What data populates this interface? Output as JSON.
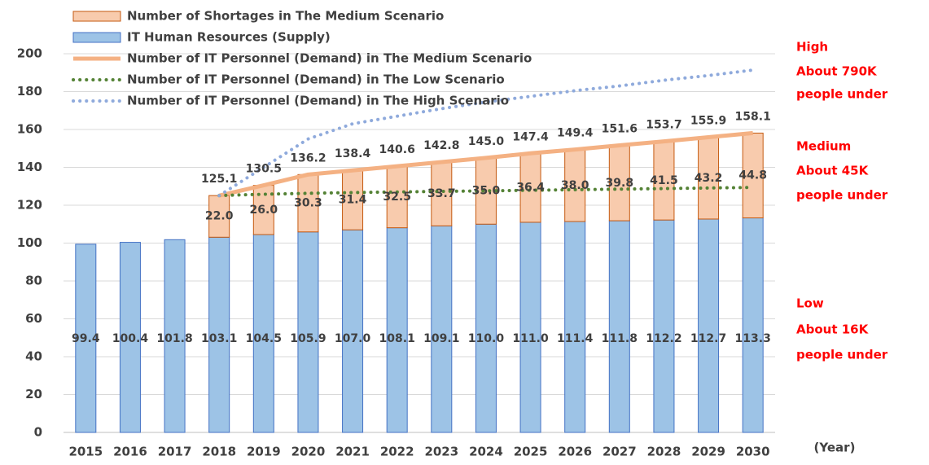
{
  "chart_data": {
    "type": "bar",
    "stacked": true,
    "categories": [
      "2015",
      "2016",
      "2017",
      "2018",
      "2019",
      "2020",
      "2021",
      "2022",
      "2023",
      "2024",
      "2025",
      "2026",
      "2027",
      "2028",
      "2029",
      "2030"
    ],
    "series": [
      {
        "name": "Number of Shortages in The Medium Scenario",
        "type": "bar",
        "color": "#f8cbad",
        "stroke": "#c55a11",
        "values": [
          null,
          null,
          null,
          22.0,
          26.0,
          30.3,
          31.4,
          32.5,
          33.7,
          35.0,
          36.4,
          38.0,
          39.8,
          41.5,
          43.2,
          44.8
        ],
        "value_labels": [
          null,
          null,
          null,
          "22.0",
          "26.0",
          "30.3",
          "31.4",
          "32.5",
          "33.7",
          "35.0",
          "36.4",
          "38.0",
          "39.8",
          "41.5",
          "43.2",
          "44.8"
        ]
      },
      {
        "name": "IT Human Resources (Supply)",
        "type": "bar",
        "color": "#9dc3e6",
        "stroke": "#4472c4",
        "values": [
          99.4,
          100.4,
          101.8,
          103.1,
          104.5,
          105.9,
          107.0,
          108.1,
          109.1,
          110.0,
          111.0,
          111.4,
          111.8,
          112.2,
          112.7,
          113.3
        ],
        "value_labels": [
          "99.4",
          "100.4",
          "101.8",
          "103.1",
          "104.5",
          "105.9",
          "107.0",
          "108.1",
          "109.1",
          "110.0",
          "111.0",
          "111.4",
          "111.8",
          "112.2",
          "112.7",
          "113.3"
        ]
      },
      {
        "name": "Number of IT Personnel (Demand) in The Medium Scenario",
        "type": "line",
        "line_style": "solid",
        "color": "#f4b183",
        "values": [
          null,
          null,
          null,
          125.1,
          130.5,
          136.2,
          138.4,
          140.6,
          142.8,
          145.0,
          147.4,
          149.4,
          151.6,
          153.7,
          155.9,
          158.1
        ],
        "value_labels": [
          null,
          null,
          null,
          "125.1",
          "130.5",
          "136.2",
          "138.4",
          "140.6",
          "142.8",
          "145.0",
          "147.4",
          "149.4",
          "151.6",
          "153.7",
          "155.9",
          "158.1"
        ]
      },
      {
        "name": "Number of IT Personnel (Demand) in The Low Scenario",
        "type": "line",
        "line_style": "dotted",
        "color": "#548235",
        "values": [
          null,
          null,
          null,
          125.1,
          125.8,
          126.3,
          126.7,
          127.0,
          127.3,
          127.6,
          127.9,
          128.2,
          128.5,
          128.8,
          129.1,
          129.4
        ]
      },
      {
        "name": "Number of IT Personnel (Demand) in The High Scenario",
        "type": "line",
        "line_style": "dotted",
        "color": "#8faadc",
        "values": [
          null,
          null,
          null,
          125.1,
          140,
          155,
          163,
          167,
          171,
          174.5,
          177.5,
          180.5,
          183,
          186,
          188.5,
          191.4
        ]
      }
    ],
    "ylim": [
      0,
      200
    ],
    "yticks": [
      0,
      20,
      40,
      60,
      80,
      100,
      120,
      140,
      160,
      180,
      200
    ],
    "grid": true,
    "legend": "top-left",
    "x_label": "(Year)",
    "annotations": [
      "High",
      "About 790K",
      "people under",
      "Medium",
      "About 45K",
      "people under",
      "Low",
      "About 16K",
      "people under"
    ]
  }
}
